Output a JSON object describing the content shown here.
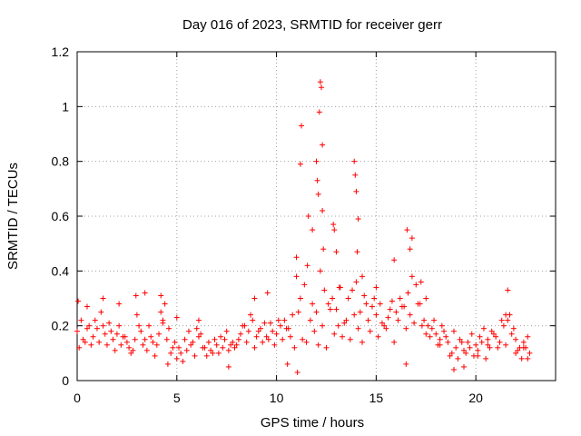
{
  "chart_data": {
    "type": "scatter",
    "title": "Day 016 of 2023, SRMTID for receiver gerr",
    "xlabel": "GPS time / hours",
    "ylabel": "SRMTID / TECUs",
    "xlim": [
      0,
      24
    ],
    "ylim": [
      0,
      1.2
    ],
    "xticks": [
      0,
      5,
      10,
      15,
      20
    ],
    "xtick_labels": [
      "0",
      "5",
      "10",
      "15",
      "20"
    ],
    "yticks": [
      0,
      0.2,
      0.4,
      0.6,
      0.8,
      1.0,
      1.2
    ],
    "ytick_labels": [
      "0",
      "0.2",
      "0.4",
      "0.6",
      "0.8",
      "1",
      "1.2"
    ],
    "grid": true,
    "marker": "+",
    "color": "#ff0000",
    "series": [
      {
        "name": "SRMTID",
        "x": [
          0.0,
          0.2,
          0.4,
          0.6,
          0.8,
          1.0,
          1.2,
          1.4,
          1.6,
          1.8,
          2.0,
          2.2,
          2.4,
          2.6,
          2.8,
          3.0,
          3.2,
          3.4,
          3.6,
          3.8,
          4.0,
          4.2,
          4.4,
          4.6,
          4.8,
          5.0,
          5.2,
          5.4,
          5.6,
          5.8,
          6.0,
          6.2,
          6.4,
          6.6,
          6.8,
          7.0,
          7.2,
          7.4,
          7.6,
          7.8,
          8.0,
          8.2,
          8.4,
          8.6,
          8.8,
          9.0,
          9.2,
          9.4,
          9.6,
          9.8,
          10.0,
          10.2,
          10.4,
          10.6,
          10.8,
          11.0,
          11.2,
          11.4,
          11.6,
          11.8,
          12.0,
          12.2,
          12.4,
          12.6,
          12.8,
          13.0,
          13.2,
          13.4,
          13.6,
          13.8,
          14.0,
          14.2,
          14.4,
          14.6,
          14.8,
          15.0,
          15.2,
          15.4,
          15.6,
          15.8,
          16.0,
          16.2,
          16.4,
          16.6,
          16.8,
          17.0,
          17.2,
          17.4,
          17.6,
          17.8,
          18.0,
          18.2,
          18.4,
          18.6,
          18.8,
          19.0,
          19.2,
          19.4,
          19.6,
          19.8,
          20.0,
          20.2,
          20.4,
          20.6,
          20.8,
          21.0,
          21.2,
          21.4,
          21.6,
          21.8,
          22.0,
          22.2,
          22.4,
          22.6,
          0.1,
          0.3,
          0.5,
          0.7,
          0.9,
          1.1,
          1.3,
          1.5,
          1.7,
          1.9,
          2.1,
          2.3,
          2.5,
          2.7,
          2.9,
          3.1,
          3.3,
          3.5,
          3.7,
          3.9,
          4.1,
          4.3,
          4.5,
          4.7,
          4.9,
          5.1,
          5.3,
          5.5,
          5.7,
          5.9,
          6.1,
          6.3,
          6.5,
          6.7,
          6.9,
          7.1,
          7.3,
          7.5,
          7.7,
          7.9,
          8.1,
          8.3,
          8.5,
          8.7,
          8.9,
          9.1,
          9.3,
          9.5,
          9.7,
          9.9,
          10.1,
          10.3,
          10.5,
          10.7,
          10.9,
          11.1,
          11.3,
          11.5,
          11.7,
          11.9,
          12.1,
          12.3,
          12.5,
          12.7,
          12.9,
          13.1,
          13.3,
          13.5,
          13.7,
          13.9,
          14.1,
          14.3,
          14.5,
          14.7,
          14.9,
          15.1,
          15.3,
          15.5,
          15.7,
          15.9,
          16.1,
          16.3,
          16.5,
          16.7,
          16.9,
          17.1,
          17.3,
          17.5,
          17.7,
          17.9,
          18.1,
          18.3,
          18.5,
          18.7,
          18.9,
          19.1,
          19.3,
          19.5,
          19.7,
          19.9,
          20.1,
          20.3,
          20.5,
          20.7,
          20.9,
          21.1,
          21.3,
          21.5,
          21.7,
          21.9,
          22.1,
          22.3,
          22.5,
          22.7,
          0.05,
          0.5,
          1.3,
          2.1,
          2.95,
          3.4,
          4.2,
          4.3,
          4.55,
          5.0,
          6.1,
          7.6,
          8.9,
          9.55,
          10.55,
          11.0,
          11.05,
          11.2,
          11.25,
          11.55,
          11.8,
          12.0,
          12.05,
          12.1,
          12.15,
          12.2,
          12.25,
          12.3,
          12.3,
          12.35,
          12.85,
          12.9,
          13.0,
          13.15,
          13.9,
          13.95,
          14.0,
          14.05,
          14.1,
          14.3,
          15.0,
          15.9,
          16.5,
          16.55,
          16.7,
          16.8,
          17.25,
          17.5,
          18.2,
          18.9,
          19.4,
          20.1,
          20.6,
          21.5,
          21.6,
          22.0,
          22.4,
          22.6
        ],
        "y": [
          0.18,
          0.22,
          0.14,
          0.2,
          0.16,
          0.19,
          0.25,
          0.17,
          0.21,
          0.15,
          0.17,
          0.13,
          0.16,
          0.12,
          0.11,
          0.24,
          0.18,
          0.15,
          0.2,
          0.14,
          0.13,
          0.25,
          0.28,
          0.19,
          0.12,
          0.08,
          0.1,
          0.15,
          0.18,
          0.14,
          0.19,
          0.17,
          0.12,
          0.14,
          0.1,
          0.13,
          0.16,
          0.15,
          0.11,
          0.14,
          0.13,
          0.17,
          0.2,
          0.18,
          0.22,
          0.16,
          0.19,
          0.21,
          0.15,
          0.18,
          0.17,
          0.2,
          0.22,
          0.19,
          0.24,
          0.38,
          0.3,
          0.35,
          0.6,
          0.28,
          0.25,
          0.4,
          0.33,
          0.28,
          0.3,
          0.26,
          0.34,
          0.21,
          0.3,
          0.33,
          0.36,
          0.25,
          0.31,
          0.22,
          0.27,
          0.24,
          0.28,
          0.2,
          0.23,
          0.29,
          0.25,
          0.3,
          0.27,
          0.32,
          0.38,
          0.35,
          0.28,
          0.22,
          0.2,
          0.19,
          0.17,
          0.15,
          0.18,
          0.14,
          0.1,
          0.12,
          0.15,
          0.11,
          0.14,
          0.17,
          0.13,
          0.16,
          0.19,
          0.15,
          0.18,
          0.16,
          0.14,
          0.2,
          0.22,
          0.17,
          0.15,
          0.12,
          0.14,
          0.16,
          0.12,
          0.15,
          0.19,
          0.13,
          0.22,
          0.14,
          0.2,
          0.13,
          0.18,
          0.11,
          0.2,
          0.16,
          0.14,
          0.1,
          0.15,
          0.2,
          0.13,
          0.11,
          0.16,
          0.09,
          0.17,
          0.21,
          0.15,
          0.1,
          0.14,
          0.12,
          0.07,
          0.11,
          0.13,
          0.09,
          0.16,
          0.12,
          0.09,
          0.11,
          0.15,
          0.1,
          0.12,
          0.18,
          0.13,
          0.12,
          0.15,
          0.2,
          0.14,
          0.24,
          0.12,
          0.18,
          0.14,
          0.16,
          0.21,
          0.13,
          0.22,
          0.15,
          0.19,
          0.16,
          0.12,
          0.25,
          0.15,
          0.14,
          0.22,
          0.18,
          0.13,
          0.2,
          0.12,
          0.26,
          0.17,
          0.2,
          0.16,
          0.22,
          0.15,
          0.24,
          0.19,
          0.14,
          0.28,
          0.18,
          0.3,
          0.16,
          0.21,
          0.19,
          0.26,
          0.14,
          0.22,
          0.27,
          0.19,
          0.24,
          0.21,
          0.28,
          0.2,
          0.17,
          0.16,
          0.22,
          0.13,
          0.2,
          0.16,
          0.09,
          0.18,
          0.08,
          0.14,
          0.1,
          0.12,
          0.09,
          0.11,
          0.14,
          0.08,
          0.12,
          0.17,
          0.12,
          0.22,
          0.13,
          0.24,
          0.19,
          0.11,
          0.08,
          0.12,
          0.1,
          0.29,
          0.27,
          0.3,
          0.28,
          0.31,
          0.32,
          0.31,
          0.22,
          0.06,
          0.23,
          0.22,
          0.05,
          0.3,
          0.32,
          0.06,
          0.45,
          0.03,
          0.79,
          0.93,
          0.42,
          0.55,
          0.8,
          0.73,
          0.68,
          0.98,
          1.09,
          1.07,
          0.86,
          0.62,
          0.48,
          0.57,
          0.55,
          0.47,
          0.34,
          0.8,
          0.75,
          0.69,
          0.47,
          0.59,
          0.38,
          0.34,
          0.44,
          0.06,
          0.55,
          0.48,
          0.52,
          0.36,
          0.3,
          0.13,
          0.04,
          0.05,
          0.09,
          0.13,
          0.24,
          0.33,
          0.1,
          0.12,
          0.08
        ]
      }
    ]
  }
}
